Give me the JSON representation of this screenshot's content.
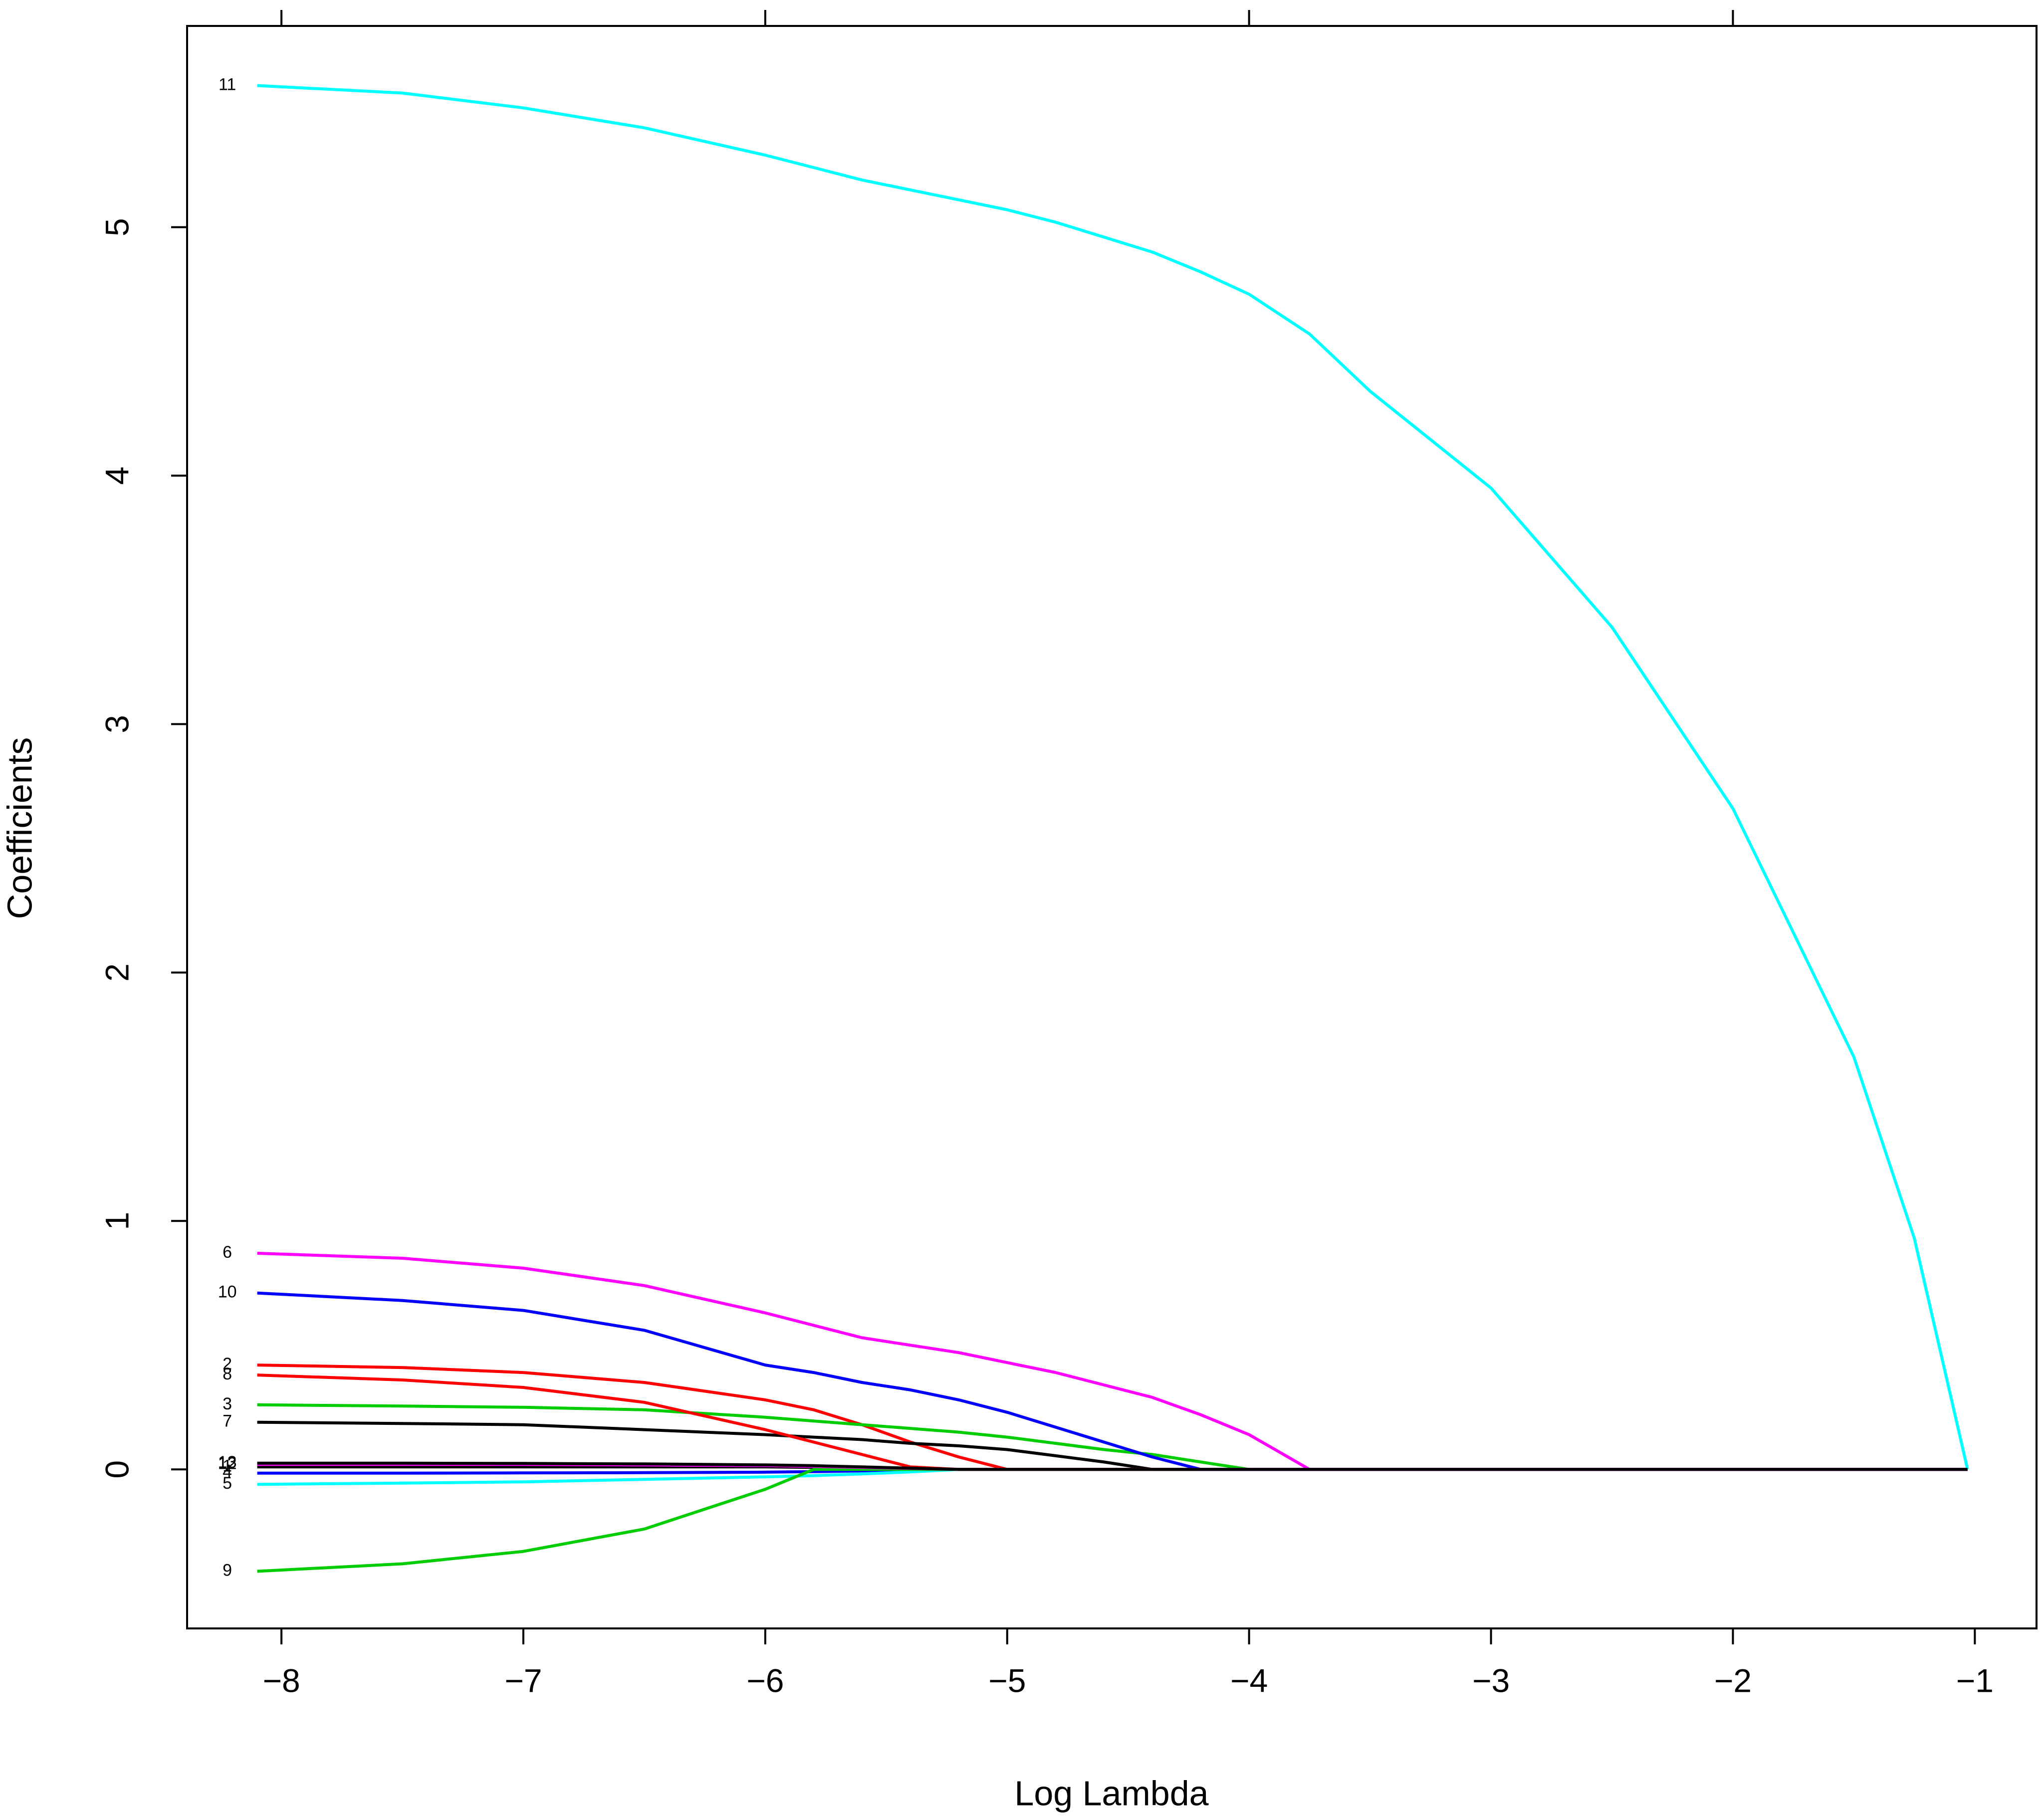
{
  "chart_data": {
    "type": "line",
    "xlabel": "Log Lambda",
    "ylabel": "Coefficients",
    "x": [
      -8.1,
      -7.5,
      -7,
      -6.5,
      -6,
      -5.8,
      -5.6,
      -5.4,
      -5.2,
      -5,
      -4.8,
      -4.6,
      -4.4,
      -4.2,
      -4,
      -3.75,
      -3.5,
      -3,
      -2.5,
      -2,
      -1.5,
      -1.25,
      -1.03
    ],
    "series": [
      {
        "name": "1",
        "color": "#000000",
        "values": [
          0.01,
          0.01,
          0.01,
          0.01,
          0.01,
          0.008,
          0.005,
          0.002,
          0,
          0,
          0,
          0,
          0,
          0,
          0,
          0,
          0,
          0,
          0,
          0,
          0,
          0,
          0
        ]
      },
      {
        "name": "2",
        "color": "#ff0000",
        "values": [
          0.42,
          0.41,
          0.39,
          0.35,
          0.28,
          0.24,
          0.18,
          0.11,
          0.05,
          0,
          0,
          0,
          0,
          0,
          0,
          0,
          0,
          0,
          0,
          0,
          0,
          0,
          0
        ]
      },
      {
        "name": "3",
        "color": "#00cd00",
        "values": [
          0.26,
          0.255,
          0.25,
          0.24,
          0.21,
          0.195,
          0.18,
          0.165,
          0.15,
          0.13,
          0.105,
          0.08,
          0.06,
          0.03,
          0,
          0,
          0,
          0,
          0,
          0,
          0,
          0,
          0
        ]
      },
      {
        "name": "4",
        "color": "#0000ff",
        "values": [
          -0.015,
          -0.015,
          -0.014,
          -0.013,
          -0.011,
          -0.009,
          -0.006,
          -0.003,
          0,
          0,
          0,
          0,
          0,
          0,
          0,
          0,
          0,
          0,
          0,
          0,
          0,
          0,
          0
        ]
      },
      {
        "name": "5",
        "color": "#00ffff",
        "values": [
          -0.06,
          -0.055,
          -0.05,
          -0.04,
          -0.03,
          -0.025,
          -0.018,
          -0.01,
          0,
          0,
          0,
          0,
          0,
          0,
          0,
          0,
          0,
          0,
          0,
          0,
          0,
          0,
          0
        ]
      },
      {
        "name": "6",
        "color": "#ff00ff",
        "values": [
          0.87,
          0.85,
          0.81,
          0.74,
          0.63,
          0.58,
          0.53,
          0.5,
          0.47,
          0.43,
          0.39,
          0.34,
          0.29,
          0.22,
          0.14,
          0,
          0,
          0,
          0,
          0,
          0,
          0,
          0
        ]
      },
      {
        "name": "7",
        "color": "#000000",
        "values": [
          0.19,
          0.185,
          0.18,
          0.16,
          0.14,
          0.13,
          0.12,
          0.105,
          0.095,
          0.08,
          0.055,
          0.03,
          0,
          0,
          0,
          0,
          0,
          0,
          0,
          0,
          0,
          0,
          0
        ]
      },
      {
        "name": "8",
        "color": "#ff0000",
        "values": [
          0.38,
          0.36,
          0.33,
          0.27,
          0.16,
          0.11,
          0.06,
          0.01,
          0,
          0,
          0,
          0,
          0,
          0,
          0,
          0,
          0,
          0,
          0,
          0,
          0,
          0,
          0
        ]
      },
      {
        "name": "9",
        "color": "#00cd00",
        "values": [
          -0.41,
          -0.38,
          -0.33,
          -0.24,
          -0.08,
          0,
          0,
          0,
          0,
          0,
          0,
          0,
          0,
          0,
          0,
          0,
          0,
          0,
          0,
          0,
          0,
          0,
          0
        ]
      },
      {
        "name": "10",
        "color": "#0000ff",
        "values": [
          0.71,
          0.68,
          0.64,
          0.56,
          0.42,
          0.39,
          0.35,
          0.32,
          0.28,
          0.23,
          0.17,
          0.11,
          0.05,
          0,
          0,
          0,
          0,
          0,
          0,
          0,
          0,
          0,
          0
        ]
      },
      {
        "name": "11",
        "color": "#00ffff",
        "values": [
          5.57,
          5.54,
          5.48,
          5.4,
          5.29,
          5.24,
          5.19,
          5.15,
          5.11,
          5.07,
          5.02,
          4.96,
          4.9,
          4.82,
          4.73,
          4.57,
          4.34,
          3.95,
          3.39,
          2.66,
          1.66,
          0.93,
          0
        ]
      },
      {
        "name": "12",
        "color": "#ff00ff",
        "values": [
          0.02,
          0.02,
          0.02,
          0.018,
          0.015,
          0.012,
          0.008,
          0.004,
          0,
          0,
          0,
          0,
          0,
          0,
          0,
          0,
          0,
          0,
          0,
          0,
          0,
          0,
          0
        ]
      },
      {
        "name": "13",
        "color": "#000000",
        "values": [
          0.025,
          0.025,
          0.024,
          0.022,
          0.018,
          0.015,
          0.01,
          0.005,
          0,
          0,
          0,
          0,
          0,
          0,
          0,
          0,
          0,
          0,
          0,
          0,
          0,
          0,
          0
        ]
      }
    ],
    "xlim": [
      -8.39,
      -0.745
    ],
    "ylim": [
      -0.64,
      5.81
    ],
    "xticks": [
      {
        "value": -8,
        "label": "−8"
      },
      {
        "value": -7,
        "label": "−7"
      },
      {
        "value": -6,
        "label": "−6"
      },
      {
        "value": -5,
        "label": "−5"
      },
      {
        "value": -4,
        "label": "−4"
      },
      {
        "value": -3,
        "label": "−3"
      },
      {
        "value": -2,
        "label": "−2"
      },
      {
        "value": -1,
        "label": "−1"
      }
    ],
    "yticks": [
      0,
      1,
      2,
      3,
      4,
      5
    ],
    "grid": false
  }
}
